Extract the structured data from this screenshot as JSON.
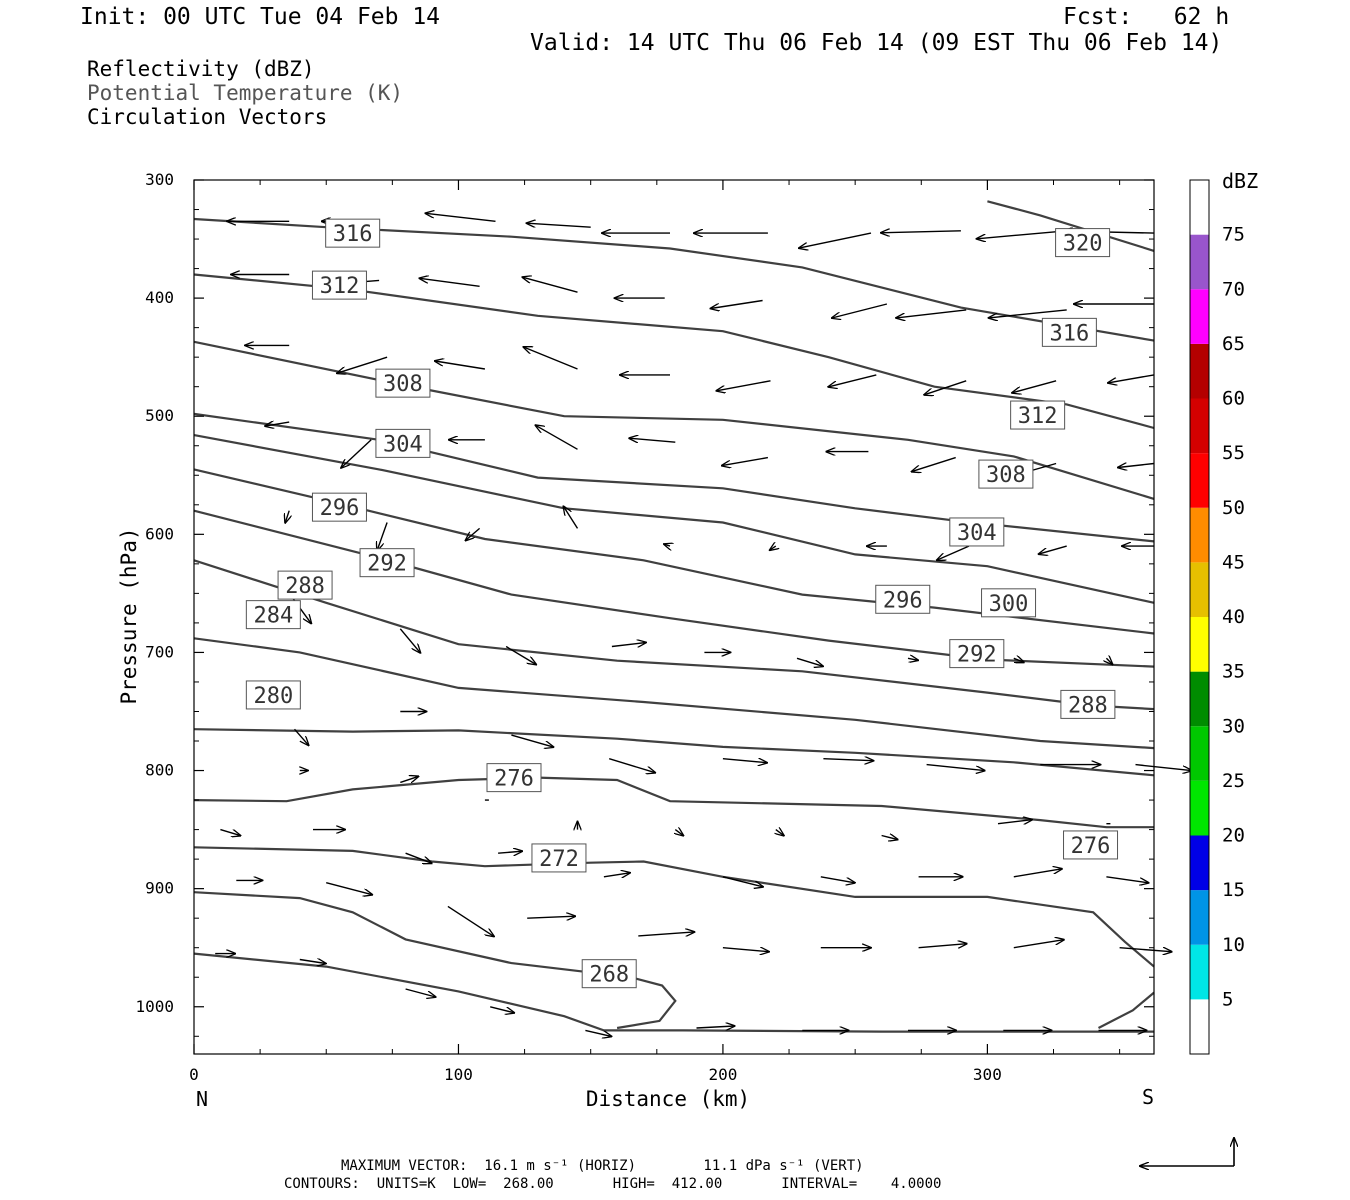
{
  "header": {
    "init": "Init: 00 UTC Tue 04 Feb 14",
    "fcst": "Fcst:   62 h",
    "valid": "Valid: 14 UTC Thu 06 Feb 14 (09 EST Thu 06 Feb 14)"
  },
  "fields": {
    "reflectivity": "Reflectivity (dBZ)",
    "theta": "Potential Temperature (K)",
    "vectors": "Circulation Vectors"
  },
  "footer": {
    "max_vector": "MAXIMUM VECTOR:  16.1 m s⁻¹ (HORIZ)        11.1 dPa s⁻¹ (VERT)",
    "contours": "CONTOURS:  UNITS=K  LOW=  268.00       HIGH=  412.00       INTERVAL=    4.0000"
  },
  "colors": {
    "contour": "#404040",
    "vector": "#000000"
  },
  "chart_data": {
    "type": "line",
    "xlabel": "Distance (km)",
    "ylabel": "Pressure (hPa)",
    "xlim": [
      0,
      363
    ],
    "ylim": [
      1040,
      300
    ],
    "xticks": [
      0,
      100,
      200,
      300
    ],
    "yticks": [
      300,
      400,
      500,
      600,
      700,
      800,
      900,
      1000
    ],
    "x_end_labels": {
      "left": "N",
      "right": "S"
    },
    "contours": [
      {
        "label": "268",
        "points": [
          [
            0,
            955
          ],
          [
            50,
            966
          ],
          [
            100,
            987
          ],
          [
            140,
            1008
          ],
          [
            155,
            1020
          ],
          [
            185,
            1020
          ],
          [
            260,
            1021
          ],
          [
            363,
            1021
          ]
        ],
        "label_at": [
          157,
          972
        ]
      },
      {
        "label": "268",
        "points": [
          [
            160,
            1018
          ],
          [
            176,
            1012
          ],
          [
            182,
            995
          ],
          [
            177,
            982
          ],
          [
            165,
            975
          ],
          [
            120,
            963
          ],
          [
            80,
            943
          ],
          [
            60,
            920
          ],
          [
            40,
            908
          ],
          [
            0,
            903
          ]
        ]
      },
      {
        "label": "268",
        "points": [
          [
            342,
            1018
          ],
          [
            355,
            1003
          ],
          [
            363,
            988
          ]
        ]
      },
      {
        "label": "272",
        "points": [
          [
            0,
            865
          ],
          [
            60,
            868
          ],
          [
            90,
            877
          ],
          [
            110,
            881
          ],
          [
            150,
            878
          ],
          [
            170,
            877
          ],
          [
            200,
            890
          ],
          [
            250,
            907
          ],
          [
            300,
            907
          ],
          [
            340,
            920
          ],
          [
            352,
            945
          ],
          [
            363,
            966
          ]
        ],
        "label_at": [
          138,
          874
        ]
      },
      {
        "label": "276",
        "points": [
          [
            0,
            825
          ],
          [
            35,
            826
          ],
          [
            60,
            816
          ],
          [
            100,
            808
          ],
          [
            130,
            806
          ],
          [
            160,
            808
          ],
          [
            180,
            826
          ],
          [
            260,
            830
          ],
          [
            320,
            842
          ],
          [
            345,
            848
          ],
          [
            363,
            848
          ]
        ],
        "label_at": [
          121,
          806
        ],
        "label_at2": [
          339,
          863
        ]
      },
      {
        "label": "280",
        "points": [
          [
            0,
            765
          ],
          [
            60,
            767
          ],
          [
            100,
            766
          ],
          [
            160,
            773
          ],
          [
            200,
            780
          ],
          [
            250,
            785
          ],
          [
            310,
            793
          ],
          [
            363,
            804
          ]
        ],
        "label_at": [
          30,
          736
        ]
      },
      {
        "label": "284",
        "points": [
          [
            0,
            688
          ],
          [
            40,
            700
          ],
          [
            100,
            730
          ],
          [
            170,
            742
          ],
          [
            250,
            757
          ],
          [
            320,
            775
          ],
          [
            363,
            781
          ]
        ],
        "label_at": [
          30,
          668
        ]
      },
      {
        "label": "288",
        "points": [
          [
            0,
            622
          ],
          [
            50,
            658
          ],
          [
            100,
            693
          ],
          [
            160,
            707
          ],
          [
            230,
            716
          ],
          [
            300,
            734
          ],
          [
            340,
            745
          ],
          [
            363,
            748
          ]
        ],
        "label_at": [
          42,
          643
        ],
        "label_at2": [
          338,
          744
        ]
      },
      {
        "label": "292",
        "points": [
          [
            0,
            580
          ],
          [
            70,
            620
          ],
          [
            120,
            651
          ],
          [
            180,
            671
          ],
          [
            240,
            690
          ],
          [
            300,
            706
          ],
          [
            363,
            712
          ]
        ],
        "label_at": [
          73,
          624
        ],
        "label_at2": [
          296,
          701
        ]
      },
      {
        "label": "296",
        "points": [
          [
            0,
            545
          ],
          [
            55,
            574
          ],
          [
            110,
            604
          ],
          [
            170,
            622
          ],
          [
            230,
            651
          ],
          [
            280,
            662
          ],
          [
            363,
            684
          ]
        ],
        "label_at": [
          55,
          577
        ],
        "label_at2": [
          268,
          655
        ]
      },
      {
        "label": "300",
        "points": [
          [
            0,
            516
          ],
          [
            70,
            545
          ],
          [
            140,
            578
          ],
          [
            200,
            590
          ],
          [
            250,
            617
          ],
          [
            300,
            627
          ],
          [
            363,
            658
          ]
        ],
        "label_at": [
          308,
          658
        ]
      },
      {
        "label": "304",
        "points": [
          [
            0,
            498
          ],
          [
            70,
            520
          ],
          [
            130,
            552
          ],
          [
            200,
            561
          ],
          [
            250,
            578
          ],
          [
            290,
            589
          ],
          [
            363,
            606
          ]
        ],
        "label_at": [
          296,
          598
        ],
        "label_at2": [
          79,
          523
        ]
      },
      {
        "label": "308",
        "points": [
          [
            0,
            437
          ],
          [
            80,
            474
          ],
          [
            140,
            500
          ],
          [
            200,
            503
          ],
          [
            270,
            520
          ],
          [
            310,
            534
          ],
          [
            363,
            570
          ]
        ],
        "label_at": [
          79,
          472
        ],
        "label_at2": [
          307,
          549
        ]
      },
      {
        "label": "312",
        "points": [
          [
            0,
            380
          ],
          [
            60,
            393
          ],
          [
            130,
            415
          ],
          [
            200,
            428
          ],
          [
            240,
            450
          ],
          [
            280,
            475
          ],
          [
            330,
            490
          ],
          [
            363,
            510
          ]
        ],
        "label_at": [
          55,
          389
        ],
        "label_at2": [
          319,
          499
        ]
      },
      {
        "label": "316",
        "points": [
          [
            0,
            333
          ],
          [
            50,
            340
          ],
          [
            120,
            348
          ],
          [
            180,
            358
          ],
          [
            230,
            374
          ],
          [
            290,
            408
          ],
          [
            363,
            436
          ]
        ],
        "label_at": [
          60,
          345
        ],
        "label_at2": [
          331,
          429
        ]
      },
      {
        "label": "320",
        "points": [
          [
            300,
            318
          ],
          [
            320,
            330
          ],
          [
            363,
            360
          ]
        ],
        "label_at": [
          336,
          353
        ]
      }
    ],
    "colorbar": {
      "unit": "dBZ",
      "levels": [
        "5",
        "10",
        "15",
        "20",
        "25",
        "30",
        "35",
        "40",
        "45",
        "50",
        "55",
        "60",
        "65",
        "70",
        "75"
      ],
      "colors": [
        "#ffffff",
        "#00e6e6",
        "#0094e6",
        "#0000e6",
        "#00e600",
        "#00c800",
        "#008c00",
        "#ffff00",
        "#e6c000",
        "#ff8c00",
        "#ff0000",
        "#d40000",
        "#b40000",
        "#ff00ff",
        "#9955cc",
        "#ffffff"
      ]
    },
    "legend_vector": {
      "horiz": "16.1 m s-1",
      "vert": "11.1 dPa s-1"
    }
  }
}
